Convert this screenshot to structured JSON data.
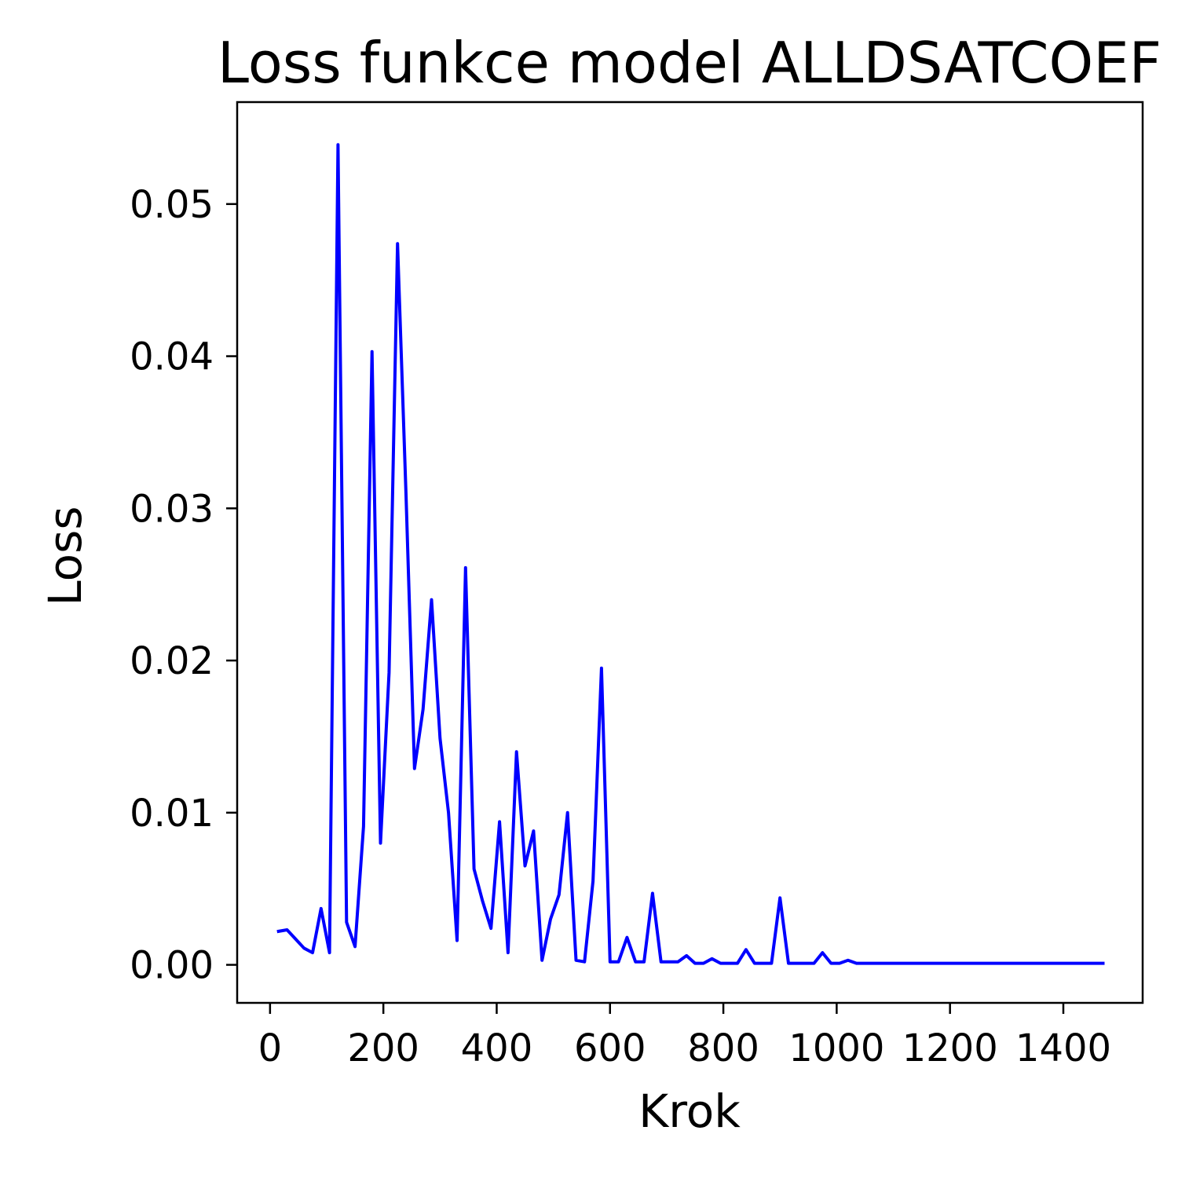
{
  "chart_data": {
    "type": "line",
    "title": "Loss funkce model ALLDSATCOEF",
    "xlabel": "Krok",
    "ylabel": "Loss",
    "xlim": [
      -58,
      1540
    ],
    "ylim": [
      -0.0025,
      0.0567
    ],
    "xticks": [
      0,
      200,
      400,
      600,
      800,
      1000,
      1200,
      1400
    ],
    "yticks": [
      0.0,
      0.01,
      0.02,
      0.03,
      0.04,
      0.05
    ],
    "xtick_labels": [
      "0",
      "200",
      "400",
      "600",
      "800",
      "1000",
      "1200",
      "1400"
    ],
    "ytick_labels": [
      "0.00",
      "0.01",
      "0.02",
      "0.03",
      "0.04",
      "0.05"
    ],
    "grid": false,
    "legend": "none",
    "series": [
      {
        "color": "#0000ff",
        "x": [
          15,
          30,
          45,
          60,
          75,
          90,
          105,
          120,
          135,
          150,
          165,
          180,
          195,
          210,
          225,
          240,
          255,
          270,
          285,
          300,
          315,
          330,
          345,
          360,
          375,
          390,
          405,
          420,
          435,
          450,
          465,
          480,
          495,
          510,
          525,
          540,
          555,
          570,
          585,
          600,
          615,
          630,
          645,
          660,
          675,
          690,
          705,
          720,
          735,
          750,
          765,
          780,
          795,
          810,
          825,
          840,
          855,
          870,
          885,
          900,
          915,
          930,
          945,
          960,
          975,
          990,
          1005,
          1020,
          1035,
          1050,
          1065,
          1080,
          1095,
          1110,
          1125,
          1140,
          1155,
          1170,
          1185,
          1200,
          1215,
          1230,
          1245,
          1260,
          1275,
          1290,
          1305,
          1320,
          1335,
          1350,
          1365,
          1380,
          1395,
          1410,
          1425,
          1440,
          1455,
          1470
        ],
        "y": [
          0.0022,
          0.0023,
          0.0017,
          0.0011,
          0.0008,
          0.0037,
          0.0008,
          0.0539,
          0.0028,
          0.0012,
          0.0091,
          0.0403,
          0.008,
          0.0192,
          0.0474,
          0.0309,
          0.0129,
          0.0168,
          0.024,
          0.0149,
          0.01,
          0.0016,
          0.0261,
          0.0063,
          0.0042,
          0.0024,
          0.0094,
          0.0008,
          0.014,
          0.0065,
          0.0088,
          0.0003,
          0.003,
          0.0046,
          0.01,
          0.0003,
          0.0002,
          0.0055,
          0.0195,
          0.0002,
          0.0002,
          0.0018,
          0.0002,
          0.0002,
          0.0047,
          0.0002,
          0.0002,
          0.0002,
          0.0006,
          0.0001,
          0.0001,
          0.0004,
          0.0001,
          0.0001,
          0.0001,
          0.001,
          0.0001,
          0.0001,
          0.0001,
          0.0044,
          0.0001,
          0.0001,
          0.0001,
          0.0001,
          0.0008,
          0.0001,
          0.0001,
          0.0003,
          0.0001,
          0.0001,
          0.0001,
          0.0001,
          0.0001,
          0.0001,
          0.0001,
          0.0001,
          0.0001,
          0.0001,
          0.0001,
          0.0001,
          0.0001,
          0.0001,
          0.0001,
          0.0001,
          0.0001,
          0.0001,
          0.0001,
          0.0001,
          0.0001,
          0.0001,
          0.0001,
          0.0001,
          0.0001,
          0.0001,
          0.0001,
          0.0001,
          0.0001,
          0.0001
        ]
      }
    ]
  }
}
